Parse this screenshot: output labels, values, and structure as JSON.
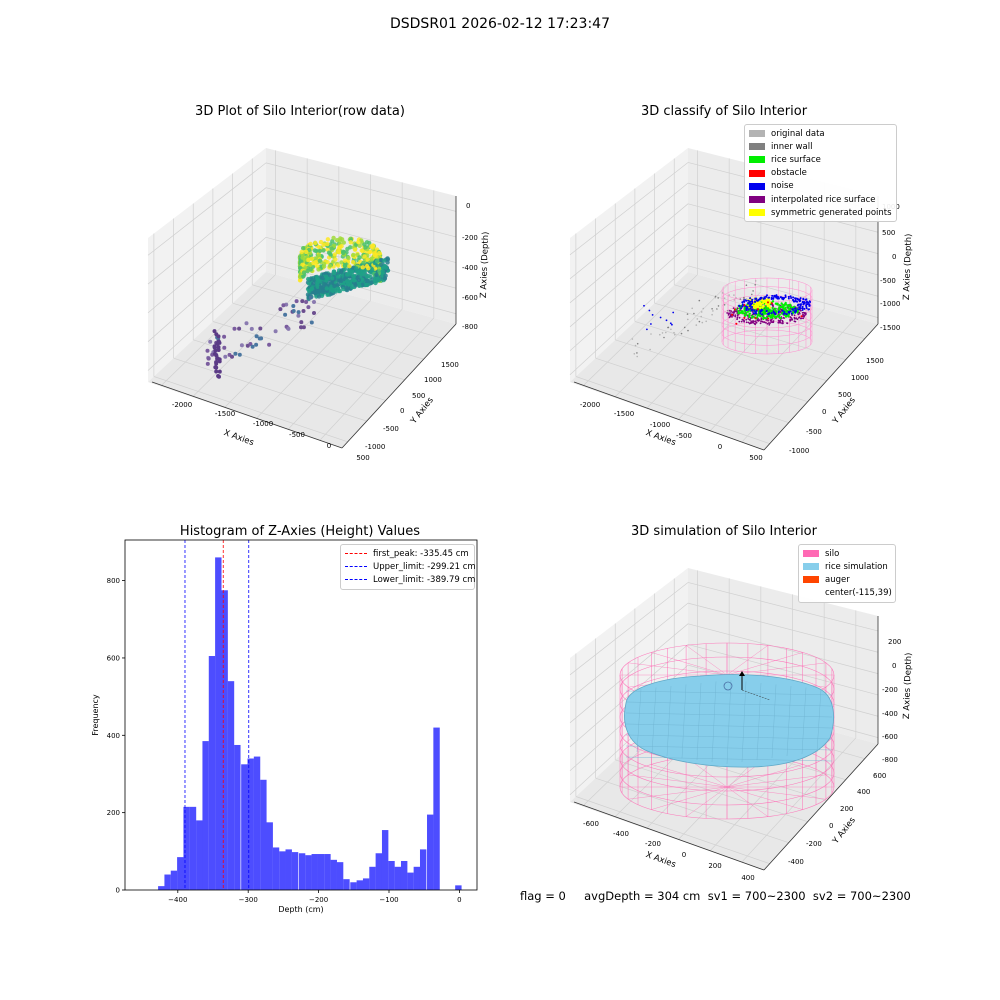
{
  "suptitle": "DSDSR01 2026-02-12 17:23:47",
  "status_line": "flag = 0     avgDepth = 304 cm  sv1 = 700~2300  sv2 = 700~2300",
  "panels": {
    "raw": {
      "title": "3D Plot of Silo Interior(row data)",
      "x_ticks": [
        "-2000",
        "-1500",
        "-1000",
        "-500",
        "0",
        "500"
      ],
      "y_ticks": [
        "1500",
        "1000",
        "500",
        "0",
        "-500",
        "-1000"
      ],
      "z_ticks": [
        "0",
        "-200",
        "-400",
        "-600",
        "-800"
      ],
      "xlabel": "X Axies",
      "ylabel": "Y Axies",
      "zlabel": "Z Axies (Depth)"
    },
    "classify": {
      "title": "3D classify of Silo Interior",
      "x_ticks": [
        "-2000",
        "-1500",
        "-1000",
        "-500",
        "0",
        "500"
      ],
      "y_ticks": [
        "1500",
        "1000",
        "500",
        "0",
        "-500",
        "-1000"
      ],
      "z_ticks": [
        "1000",
        "500",
        "0",
        "-500",
        "-1000",
        "-1500"
      ],
      "xlabel": "X Axies",
      "ylabel": "Y Axies",
      "zlabel": "Z Axies (Depth)",
      "legend": [
        {
          "label": "original data",
          "color": "#b3b3b3"
        },
        {
          "label": "inner wall",
          "color": "#808080"
        },
        {
          "label": "rice surface",
          "color": "#00ee00"
        },
        {
          "label": "obstacle",
          "color": "#ff0000"
        },
        {
          "label": "noise",
          "color": "#0000ee"
        },
        {
          "label": "interpolated rice surface",
          "color": "#800080"
        },
        {
          "label": "symmetric generated points",
          "color": "#ffff00"
        }
      ]
    },
    "simulation": {
      "title": "3D simulation of Silo Interior",
      "x_ticks": [
        "-600",
        "-400",
        "-200",
        "0",
        "200",
        "400"
      ],
      "y_ticks": [
        "600",
        "400",
        "200",
        "0",
        "-200",
        "-400"
      ],
      "z_ticks": [
        "200",
        "0",
        "-200",
        "-400",
        "-600",
        "-800"
      ],
      "xlabel": "X Axies",
      "ylabel": "Y Axies",
      "zlabel": "Z Axies (Depth)",
      "legend": [
        {
          "label": "silo",
          "color": "#ff69b4"
        },
        {
          "label": "rice simulation",
          "color": "#87ceeb"
        },
        {
          "label": "auger",
          "color": "#ff4500"
        },
        {
          "label": "center(-115,39)",
          "color": ""
        }
      ]
    }
  },
  "chart_data": [
    {
      "type": "bar",
      "title": "Histogram of Z-Axies (Height) Values",
      "xlabel": "Depth (cm)",
      "ylabel": "Frequency",
      "xlim": [
        -475,
        25
      ],
      "ylim": [
        0,
        905
      ],
      "x_ticks": [
        -400,
        -300,
        -200,
        -100,
        0
      ],
      "y_ticks": [
        0,
        200,
        400,
        600,
        800
      ],
      "bin_width": 9.1,
      "bin_starts": [
        -428,
        -419,
        -410,
        -401,
        -392,
        -383,
        -374,
        -365,
        -356,
        -347,
        -338,
        -329,
        -320,
        -310,
        -301,
        -292,
        -283,
        -274,
        -265,
        -256,
        -247,
        -238,
        -228,
        -219,
        -210,
        -201,
        -192,
        -183,
        -174,
        -165,
        -155,
        -146,
        -137,
        -128,
        -119,
        -110,
        -101,
        -92,
        -83,
        -74,
        -65,
        -56,
        -46,
        -37,
        -28,
        -19,
        -10
      ],
      "values": [
        10,
        40,
        50,
        85,
        215,
        215,
        180,
        385,
        605,
        860,
        775,
        540,
        375,
        325,
        340,
        345,
        285,
        175,
        110,
        100,
        105,
        98,
        95,
        90,
        93,
        93,
        93,
        78,
        72,
        28,
        20,
        25,
        30,
        60,
        95,
        155,
        75,
        60,
        75,
        45,
        60,
        105,
        195,
        420,
        0,
        0,
        0
      ],
      "extra_bars": [
        {
          "x_start": -6,
          "value": 12
        }
      ],
      "vlines": [
        {
          "label": "first_peak: -335.45 cm",
          "x": -335.45,
          "color": "#ff0000"
        },
        {
          "label": "Upper_limit: -299.21 cm",
          "x": -299.21,
          "color": "#0000ff"
        },
        {
          "label": "Lower_limit: -389.79 cm",
          "x": -389.79,
          "color": "#0000ff"
        }
      ],
      "bar_color": "#4d4dff"
    }
  ]
}
